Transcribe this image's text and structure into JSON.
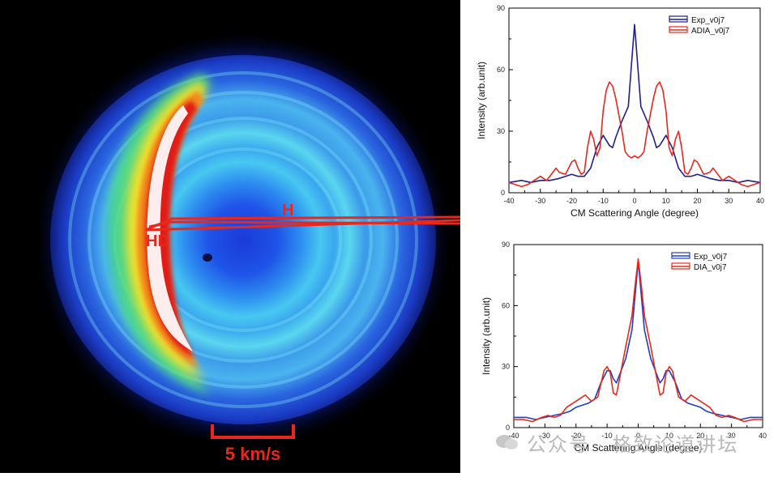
{
  "image": {
    "label_h": "H",
    "label_hd": "HD",
    "scale_bar_label": "5 km/s",
    "colors": {
      "annotation": "#e8281c",
      "background": "#000000"
    }
  },
  "watermark": {
    "text": "公众号 · 格致论道讲坛",
    "icon": "wechat-icon"
  },
  "chart_data": [
    {
      "type": "line",
      "xlabel": "CM Scattering Angle (degree)",
      "ylabel": "Intensity (arb.unit)",
      "xlim": [
        -40,
        40
      ],
      "ylim": [
        0,
        90
      ],
      "xticks": [
        -40,
        -30,
        -20,
        -10,
        0,
        10,
        20,
        30,
        40
      ],
      "yticks": [
        0,
        30,
        60,
        90
      ],
      "legend_position": "top-right",
      "grid": false,
      "series": [
        {
          "name": "Exp_v0j7",
          "color": "#1f1f8f",
          "points": [
            [
              -40,
              5
            ],
            [
              -36,
              6
            ],
            [
              -33,
              5
            ],
            [
              -30,
              6
            ],
            [
              -27,
              6
            ],
            [
              -24,
              7
            ],
            [
              -22,
              8
            ],
            [
              -20,
              9
            ],
            [
              -18,
              8
            ],
            [
              -16,
              8
            ],
            [
              -14,
              12
            ],
            [
              -12,
              22
            ],
            [
              -10,
              28
            ],
            [
              -8,
              23
            ],
            [
              -7,
              22
            ],
            [
              -6,
              27
            ],
            [
              -4,
              35
            ],
            [
              -2,
              42
            ],
            [
              -1,
              62
            ],
            [
              0,
              82
            ],
            [
              1,
              62
            ],
            [
              2,
              42
            ],
            [
              4,
              35
            ],
            [
              6,
              27
            ],
            [
              7,
              22
            ],
            [
              8,
              23
            ],
            [
              10,
              28
            ],
            [
              12,
              22
            ],
            [
              14,
              12
            ],
            [
              16,
              8
            ],
            [
              18,
              8
            ],
            [
              20,
              9
            ],
            [
              22,
              8
            ],
            [
              24,
              7
            ],
            [
              27,
              6
            ],
            [
              30,
              6
            ],
            [
              33,
              5
            ],
            [
              36,
              6
            ],
            [
              40,
              5
            ]
          ]
        },
        {
          "name": "ADIA_v0j7",
          "color": "#e8281c",
          "points": [
            [
              -40,
              5
            ],
            [
              -38,
              4
            ],
            [
              -36,
              3
            ],
            [
              -34,
              4
            ],
            [
              -32,
              6
            ],
            [
              -30,
              8
            ],
            [
              -29,
              7
            ],
            [
              -28,
              6
            ],
            [
              -26,
              10
            ],
            [
              -25,
              12
            ],
            [
              -24,
              10
            ],
            [
              -22,
              9
            ],
            [
              -20,
              15
            ],
            [
              -19,
              16
            ],
            [
              -18,
              12
            ],
            [
              -17,
              9
            ],
            [
              -16,
              10
            ],
            [
              -15,
              22
            ],
            [
              -14,
              30
            ],
            [
              -13,
              26
            ],
            [
              -12,
              18
            ],
            [
              -11,
              22
            ],
            [
              -10,
              40
            ],
            [
              -9,
              50
            ],
            [
              -8,
              54
            ],
            [
              -7,
              52
            ],
            [
              -6,
              46
            ],
            [
              -5,
              38
            ],
            [
              -4,
              30
            ],
            [
              -3,
              20
            ],
            [
              -2,
              18
            ],
            [
              -1,
              17
            ],
            [
              0,
              18
            ],
            [
              1,
              17
            ],
            [
              2,
              18
            ],
            [
              3,
              20
            ],
            [
              4,
              30
            ],
            [
              5,
              38
            ],
            [
              6,
              46
            ],
            [
              7,
              52
            ],
            [
              8,
              54
            ],
            [
              9,
              50
            ],
            [
              10,
              40
            ],
            [
              11,
              22
            ],
            [
              12,
              18
            ],
            [
              13,
              26
            ],
            [
              14,
              30
            ],
            [
              15,
              22
            ],
            [
              16,
              10
            ],
            [
              17,
              9
            ],
            [
              18,
              12
            ],
            [
              19,
              16
            ],
            [
              20,
              15
            ],
            [
              22,
              9
            ],
            [
              24,
              10
            ],
            [
              25,
              12
            ],
            [
              26,
              10
            ],
            [
              28,
              6
            ],
            [
              29,
              7
            ],
            [
              30,
              8
            ],
            [
              32,
              6
            ],
            [
              34,
              4
            ],
            [
              36,
              3
            ],
            [
              38,
              4
            ],
            [
              40,
              5
            ]
          ]
        }
      ]
    },
    {
      "type": "line",
      "xlabel": "CM Scattering Angle (degree)",
      "ylabel": "Intensity (arb.unit)",
      "xlim": [
        -40,
        40
      ],
      "ylim": [
        0,
        90
      ],
      "xticks": [
        -40,
        -30,
        -20,
        -10,
        0,
        10,
        20,
        30,
        40
      ],
      "yticks": [
        0,
        30,
        60,
        90
      ],
      "legend_position": "top-right",
      "grid": false,
      "series": [
        {
          "name": "Exp_v0j7",
          "color": "#1f3fbf",
          "points": [
            [
              -40,
              5
            ],
            [
              -36,
              5
            ],
            [
              -33,
              4
            ],
            [
              -30,
              5
            ],
            [
              -27,
              6
            ],
            [
              -24,
              7
            ],
            [
              -22,
              8
            ],
            [
              -20,
              10
            ],
            [
              -18,
              11
            ],
            [
              -16,
              12
            ],
            [
              -14,
              14
            ],
            [
              -12,
              22
            ],
            [
              -10,
              28
            ],
            [
              -9,
              28
            ],
            [
              -8,
              24
            ],
            [
              -7,
              22
            ],
            [
              -6,
              26
            ],
            [
              -4,
              34
            ],
            [
              -2,
              48
            ],
            [
              -1,
              65
            ],
            [
              0,
              82
            ],
            [
              1,
              65
            ],
            [
              2,
              48
            ],
            [
              4,
              34
            ],
            [
              6,
              26
            ],
            [
              7,
              22
            ],
            [
              8,
              24
            ],
            [
              9,
              28
            ],
            [
              10,
              28
            ],
            [
              12,
              22
            ],
            [
              14,
              14
            ],
            [
              16,
              12
            ],
            [
              18,
              11
            ],
            [
              20,
              10
            ],
            [
              22,
              8
            ],
            [
              24,
              7
            ],
            [
              27,
              6
            ],
            [
              30,
              5
            ],
            [
              33,
              4
            ],
            [
              36,
              5
            ],
            [
              40,
              5
            ]
          ]
        },
        {
          "name": "DIA_v0j7",
          "color": "#e8281c",
          "points": [
            [
              -40,
              4
            ],
            [
              -37,
              4
            ],
            [
              -34,
              3
            ],
            [
              -31,
              5
            ],
            [
              -29,
              6
            ],
            [
              -27,
              5
            ],
            [
              -25,
              6
            ],
            [
              -23,
              10
            ],
            [
              -21,
              12
            ],
            [
              -19,
              14
            ],
            [
              -17,
              16
            ],
            [
              -15,
              13
            ],
            [
              -13,
              15
            ],
            [
              -11,
              28
            ],
            [
              -10,
              30
            ],
            [
              -9,
              27
            ],
            [
              -8,
              17
            ],
            [
              -7,
              16
            ],
            [
              -6,
              24
            ],
            [
              -4,
              40
            ],
            [
              -2,
              55
            ],
            [
              -1,
              70
            ],
            [
              0,
              83
            ],
            [
              1,
              70
            ],
            [
              2,
              55
            ],
            [
              4,
              40
            ],
            [
              6,
              24
            ],
            [
              7,
              16
            ],
            [
              8,
              17
            ],
            [
              9,
              27
            ],
            [
              10,
              30
            ],
            [
              11,
              28
            ],
            [
              13,
              15
            ],
            [
              15,
              13
            ],
            [
              17,
              16
            ],
            [
              19,
              14
            ],
            [
              21,
              12
            ],
            [
              23,
              10
            ],
            [
              25,
              6
            ],
            [
              27,
              5
            ],
            [
              29,
              6
            ],
            [
              31,
              5
            ],
            [
              34,
              3
            ],
            [
              37,
              4
            ],
            [
              40,
              4
            ]
          ]
        }
      ]
    }
  ]
}
